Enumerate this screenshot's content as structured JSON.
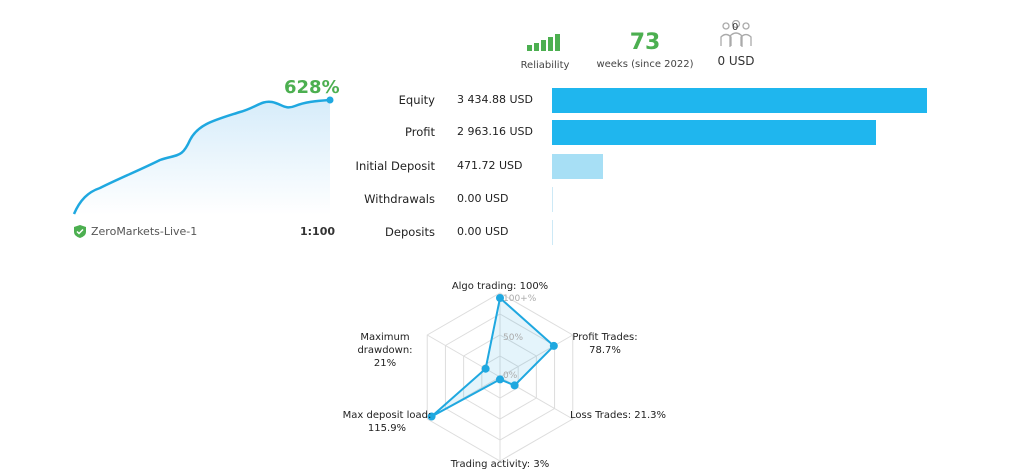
{
  "header": {
    "reliability_label": "Reliability",
    "weeks_value": "73",
    "weeks_label": "weeks (since 2022)",
    "subscribers_count": "0",
    "subscribers_amount": "0 USD"
  },
  "growth": {
    "percent": "628%",
    "server": "ZeroMarkets-Live-1",
    "leverage": "1:100"
  },
  "balance": {
    "max": 3434.88,
    "rows": [
      {
        "label": "Equity",
        "value": "3 434.88 USD",
        "amount": 3434.88,
        "color": "#1fb6ee"
      },
      {
        "label": "Profit",
        "value": "2 963.16 USD",
        "amount": 2963.16,
        "color": "#1fb6ee"
      },
      {
        "label": "Initial Deposit",
        "value": "471.72 USD",
        "amount": 471.72,
        "color": "#a7dff5"
      },
      {
        "label": "Withdrawals",
        "value": "0.00 USD",
        "amount": 0,
        "color": "#a7dff5"
      },
      {
        "label": "Deposits",
        "value": "0.00 USD",
        "amount": 0,
        "color": "#a7dff5"
      }
    ]
  },
  "radar": {
    "ticks": [
      "100+%",
      "50%",
      "0%"
    ],
    "axes": [
      {
        "label": "Algo trading: 100%",
        "value": 100
      },
      {
        "label": "Profit Trades: 78.7%",
        "value": 78.7
      },
      {
        "label": "Loss Trades: 21.3%",
        "value": 21.3
      },
      {
        "label": "Trading activity: 3%",
        "value": 3
      },
      {
        "label": "Max deposit load: 115.9%",
        "value": 115.9
      },
      {
        "label": "Maximum drawdown: 21%",
        "value": 21
      }
    ]
  },
  "colors": {
    "accent": "#1fa8e0",
    "green": "#4caf50"
  }
}
